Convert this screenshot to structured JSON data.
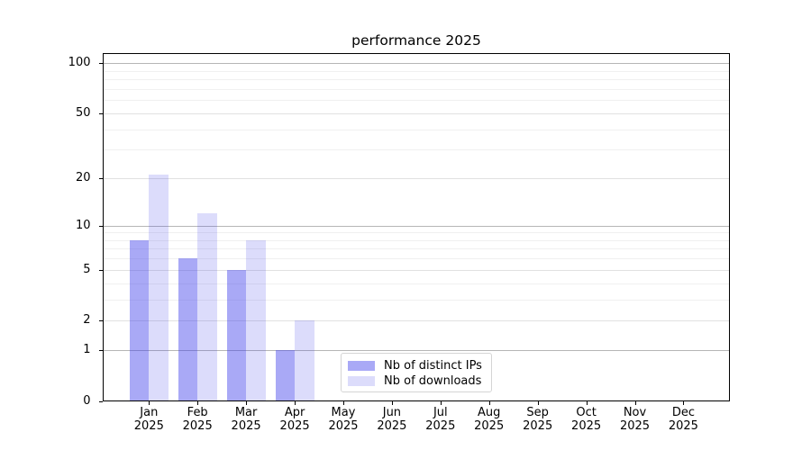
{
  "chart_data": {
    "type": "bar",
    "title": "performance 2025",
    "categories": [
      "Jan",
      "Feb",
      "Mar",
      "Apr",
      "May",
      "Jun",
      "Jul",
      "Aug",
      "Sep",
      "Oct",
      "Nov",
      "Dec"
    ],
    "tick_year": "2025",
    "series": [
      {
        "id": "distinct-ips",
        "name": "Nb of distinct IPs",
        "color": "#a9a9f3",
        "fill": "rgba(60,60,235,0.44)",
        "values": [
          8,
          6,
          5,
          1,
          0,
          0,
          0,
          0,
          0,
          0,
          0,
          0
        ]
      },
      {
        "id": "downloads",
        "name": "Nb of downloads",
        "color": "#dcdcf9",
        "fill": "rgba(60,60,235,0.18)",
        "values": [
          21,
          12,
          8,
          2,
          0,
          0,
          0,
          0,
          0,
          0,
          0,
          0
        ]
      }
    ],
    "yscale": "log1p",
    "ylim": [
      0,
      115
    ],
    "yticks": [
      0,
      1,
      2,
      5,
      10,
      20,
      50,
      100
    ],
    "decade_yticks": [
      1,
      10,
      100
    ],
    "minor_yticks": [
      3,
      4,
      6,
      7,
      8,
      9,
      30,
      40,
      60,
      70,
      80,
      90
    ],
    "grid": "on",
    "legend_position": "lower center",
    "axis_color": "#000000",
    "grid_color_major": "#b6b6b6",
    "grid_color_labeled": "#e1e1e1",
    "grid_color_minor": "#f0f0f0"
  }
}
